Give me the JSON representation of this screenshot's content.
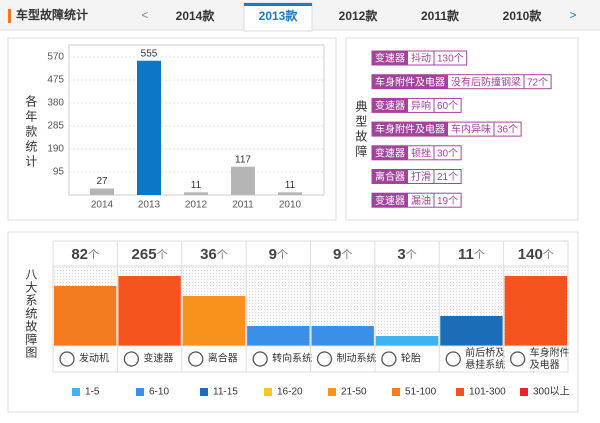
{
  "header": {
    "title": "车型故障统计"
  },
  "tabs": {
    "prev": "<",
    "items": [
      "2014款",
      "2013款",
      "2012款",
      "2011款",
      "2010款"
    ],
    "active": 1,
    "next": ">"
  },
  "chart_data": [
    {
      "type": "bar",
      "y_label": "各年款统计",
      "categories": [
        "2014",
        "2013",
        "2012",
        "2011",
        "2010"
      ],
      "values": [
        27,
        555,
        11,
        117,
        11
      ],
      "colors": [
        "#b5b5b5",
        "#0b78c6",
        "#b5b5b5",
        "#b5b5b5",
        "#b5b5b5"
      ],
      "ylim": [
        0,
        620
      ],
      "yticks": [
        95,
        190,
        285,
        380,
        475,
        570
      ],
      "grid": true
    },
    {
      "type": "level_bar",
      "title": "八大系统故障图",
      "categories": [
        "发动机",
        "变速器",
        "离合器",
        "转向系统",
        "制动系统",
        "轮胎",
        "前后桥及悬挂系统",
        "车身附件及电器"
      ],
      "values": [
        82,
        265,
        36,
        9,
        9,
        3,
        11,
        140
      ],
      "unit": "个",
      "legend": [
        {
          "label": "1-5",
          "color": "#3fb2f0"
        },
        {
          "label": "6-10",
          "color": "#3a8fe6"
        },
        {
          "label": "11-15",
          "color": "#1b6db7"
        },
        {
          "label": "16-20",
          "color": "#f8c32a"
        },
        {
          "label": "21-50",
          "color": "#f7921e"
        },
        {
          "label": "51-100",
          "color": "#f47b20"
        },
        {
          "label": "101-300",
          "color": "#f4531d"
        },
        {
          "label": "300以上",
          "color": "#e6262b"
        }
      ]
    }
  ],
  "typical_faults": {
    "title": "典型故障",
    "rows": [
      [
        "变速器",
        "抖动",
        "130个"
      ],
      [
        "车身附件及电器",
        "没有后防撞钢梁",
        "72个"
      ],
      [
        "变速器",
        "异响",
        "60个"
      ],
      [
        "车身附件及电器",
        "车内异味",
        "36个"
      ],
      [
        "变速器",
        "顿挫",
        "30个"
      ],
      [
        "离合器",
        "打滑",
        "21个"
      ],
      [
        "变速器",
        "漏油",
        "19个"
      ]
    ]
  }
}
